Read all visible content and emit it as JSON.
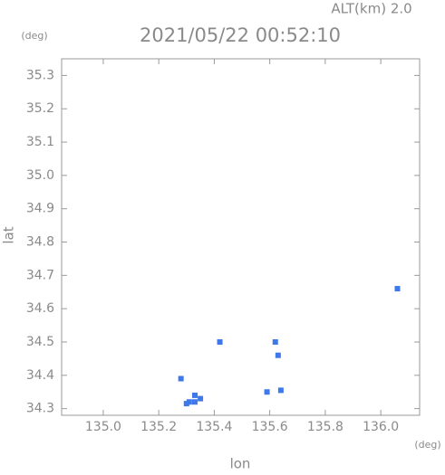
{
  "chart_data": {
    "type": "scatter",
    "title": "2021/05/22 00:52:10",
    "subtitle": "ALT(km) 2.0",
    "x_label": "lon",
    "y_label": "lat",
    "x_unit": "(deg)",
    "y_unit": "(deg)",
    "xlim": [
      134.85,
      136.14
    ],
    "ylim": [
      34.28,
      35.35
    ],
    "xticks": [
      {
        "value": 135,
        "label": "135.0"
      },
      135.2,
      135.4,
      135.6,
      135.8,
      {
        "value": 136,
        "label": "136.0"
      }
    ],
    "yticks": [
      34.3,
      34.4,
      34.5,
      34.6,
      34.7,
      34.8,
      34.9,
      {
        "value": 35,
        "label": "35.0"
      },
      35.1,
      35.2,
      35.3
    ],
    "series": [
      {
        "color": "#3f78e8",
        "x": [
          135.3,
          135.31,
          135.33,
          135.35,
          135.33,
          135.42,
          135.62,
          135.63,
          135.59,
          135.64,
          136.06,
          135.28
        ],
        "y": [
          34.315,
          34.32,
          34.32,
          34.33,
          34.34,
          34.5,
          34.5,
          34.46,
          34.35,
          34.355,
          34.66,
          34.39
        ]
      }
    ]
  }
}
